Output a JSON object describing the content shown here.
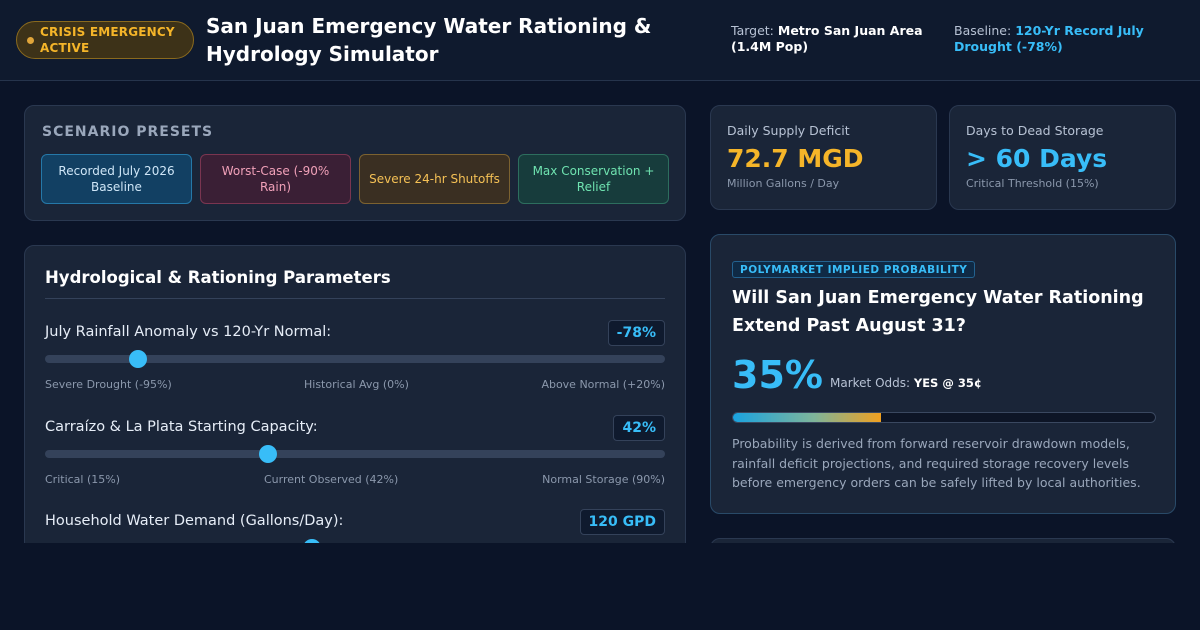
{
  "header": {
    "crisis_badge": "CRISIS EMERGENCY ACTIVE",
    "title": "San Juan Emergency Water Rationing & Hydrology Simulator",
    "target_label": "Target:",
    "target_value": "Metro San Juan Area (1.4M Pop)",
    "baseline_label": "Baseline:",
    "baseline_value": "120-Yr Record July Drought (-78%)"
  },
  "presets": {
    "title": "SCENARIO PRESETS",
    "items": [
      {
        "label": "Recorded July 2026 Baseline",
        "color": "#2578a8"
      },
      {
        "label": "Worst-Case (-90% Rain)",
        "color": "#7a3550"
      },
      {
        "label": "Severe 24-hr Shutoffs",
        "color": "#7c6230"
      },
      {
        "label": "Max Conservation + Relief",
        "color": "#2d6e5e"
      }
    ]
  },
  "parameters": {
    "title": "Hydrological & Rationing Parameters",
    "items": [
      {
        "label": "July Rainfall Anomaly vs 120-Yr Normal:",
        "value": "-78%",
        "fraction": 0.15,
        "ticks": [
          "Severe Drought (-95%)",
          "Historical Avg (0%)",
          "Above Normal (+20%)"
        ]
      },
      {
        "label": "Carraízo & La Plata Starting Capacity:",
        "value": "42%",
        "fraction": 0.36,
        "ticks": [
          "Critical (15%)",
          "Current Observed (42%)",
          "Normal Storage (90%)"
        ]
      },
      {
        "label": "Household Water Demand (Gallons/Day):",
        "value": "120 GPD",
        "fraction": 0.43,
        "ticks": []
      }
    ]
  },
  "stats": [
    {
      "label": "Daily Supply Deficit",
      "value": "72.7 MGD",
      "sub": "Million Gallons / Day",
      "color": "#f5b529"
    },
    {
      "label": "Days to Dead Storage",
      "value": "> 60 Days",
      "sub": "Critical Threshold (15%)",
      "color": "#38bdf8"
    }
  ],
  "market": {
    "chip": "POLYMARKET IMPLIED PROBABILITY",
    "question": "Will San Juan Emergency Water Rationing Extend Past August 31?",
    "probability": "35%",
    "probability_fraction": 0.35,
    "odds_label": "Market Odds:",
    "odds_value": "YES @ 35¢",
    "description": "Probability is derived from forward reservoir drawdown models, rainfall deficit projections, and required storage recovery levels before emergency orders can be safely lifted by local authorities."
  }
}
